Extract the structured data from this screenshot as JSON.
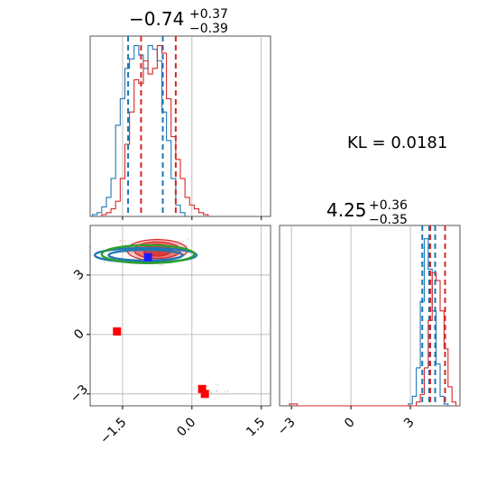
{
  "chart_data": [
    {
      "type": "histogram",
      "panel": "x-marginal",
      "title": {
        "value": "−0.74",
        "plus": "+0.37",
        "minus": "−0.39"
      },
      "xlim": [
        -2.2,
        1.7
      ],
      "x_ticks": [
        -1.5,
        0.0,
        1.5
      ],
      "grid": true,
      "series": [
        {
          "color": "#1f77b4",
          "hist_x": [
            -2.1,
            -2.0,
            -1.9,
            -1.8,
            -1.7,
            -1.6,
            -1.5,
            -1.4,
            -1.3,
            -1.2,
            -1.1,
            -1.0,
            -0.9,
            -0.8,
            -0.7,
            -0.6,
            -0.5,
            -0.4,
            -0.3,
            -0.2
          ],
          "hist_y": [
            0.01,
            0.02,
            0.05,
            0.1,
            0.2,
            0.48,
            0.62,
            0.78,
            0.83,
            0.9,
            0.85,
            0.78,
            0.9,
            0.88,
            0.82,
            0.55,
            0.4,
            0.2,
            0.06,
            0.02
          ],
          "quantile_lines": [
            -1.38,
            -0.63
          ]
        },
        {
          "color": "#d62728",
          "hist_x": [
            -1.9,
            -1.8,
            -1.7,
            -1.6,
            -1.5,
            -1.4,
            -1.3,
            -1.2,
            -1.1,
            -1.0,
            -0.9,
            -0.8,
            -0.7,
            -0.6,
            -0.5,
            -0.4,
            -0.3,
            -0.2,
            -0.1,
            0.0,
            0.1,
            0.2,
            0.3
          ],
          "hist_y": [
            0.01,
            0.02,
            0.04,
            0.08,
            0.2,
            0.38,
            0.55,
            0.72,
            0.7,
            0.82,
            0.75,
            0.78,
            0.9,
            0.86,
            0.62,
            0.42,
            0.3,
            0.2,
            0.1,
            0.06,
            0.04,
            0.02,
            0.01
          ],
          "quantile_lines": [
            -1.1,
            -0.35
          ]
        }
      ]
    },
    {
      "type": "scatter",
      "panel": "joint",
      "xlim": [
        -2.2,
        1.7
      ],
      "ylim": [
        -3.6,
        5.5
      ],
      "x_ticks": [
        -1.5,
        0.0,
        1.5
      ],
      "y_ticks": [
        -3,
        0,
        3
      ],
      "grid": true,
      "contours": [
        {
          "color": "#d62728",
          "center": [
            -0.75,
            4.25
          ],
          "radii": [
            0.62,
            0.62
          ],
          "levels": [
            [
              0.65,
              0.9
            ],
            [
              0.5,
              0.7
            ],
            [
              0.3,
              0.5
            ]
          ]
        },
        {
          "color": "#1f77b4",
          "center": [
            -1.0,
            4.0
          ],
          "radii": [
            0.55,
            0.55
          ],
          "levels": [
            [
              1.1,
              0.6
            ],
            [
              0.8,
              0.45
            ]
          ]
        },
        {
          "color": "#2ca02c",
          "center": [
            -0.95,
            4.05
          ],
          "radii": [
            0.7,
            0.5
          ],
          "levels": [
            [
              1.0,
              0.75
            ]
          ]
        }
      ],
      "markers": [
        {
          "shape": "square",
          "color": "#ff0000",
          "points": [
            [
              -1.62,
              0.15
            ],
            [
              0.22,
              -2.75
            ],
            [
              0.28,
              -3.0
            ]
          ]
        },
        {
          "shape": "square",
          "color": "#1a1aff",
          "points": [
            [
              -0.95,
              3.9
            ]
          ]
        }
      ]
    },
    {
      "type": "histogram",
      "panel": "y-marginal",
      "title": {
        "value": "4.25",
        "plus": "+0.36",
        "minus": "−0.35"
      },
      "xlim": [
        -3.6,
        5.5
      ],
      "x_ticks": [
        -3,
        0,
        3
      ],
      "grid": true,
      "series": [
        {
          "color": "#1f77b4",
          "hist_x": [
            3.0,
            3.2,
            3.4,
            3.6,
            3.8,
            4.0,
            4.2,
            4.4,
            4.6,
            4.8
          ],
          "hist_y": [
            0.01,
            0.05,
            0.2,
            0.55,
            0.88,
            0.72,
            0.5,
            0.22,
            0.05,
            0.01
          ],
          "quantile_lines": [
            3.6,
            3.95,
            4.25
          ]
        },
        {
          "color": "#d62728",
          "hist_x": [
            -3.0,
            -2.8,
            3.4,
            3.6,
            3.8,
            4.0,
            4.2,
            4.4,
            4.6,
            4.8,
            5.0,
            5.2
          ],
          "hist_y": [
            0.01,
            0.01,
            0.02,
            0.06,
            0.2,
            0.45,
            0.7,
            0.66,
            0.5,
            0.3,
            0.1,
            0.02
          ],
          "quantile_lines": [
            4.0,
            4.75
          ]
        }
      ]
    }
  ],
  "annotation": {
    "kl_text": "KL = 0.0181"
  }
}
